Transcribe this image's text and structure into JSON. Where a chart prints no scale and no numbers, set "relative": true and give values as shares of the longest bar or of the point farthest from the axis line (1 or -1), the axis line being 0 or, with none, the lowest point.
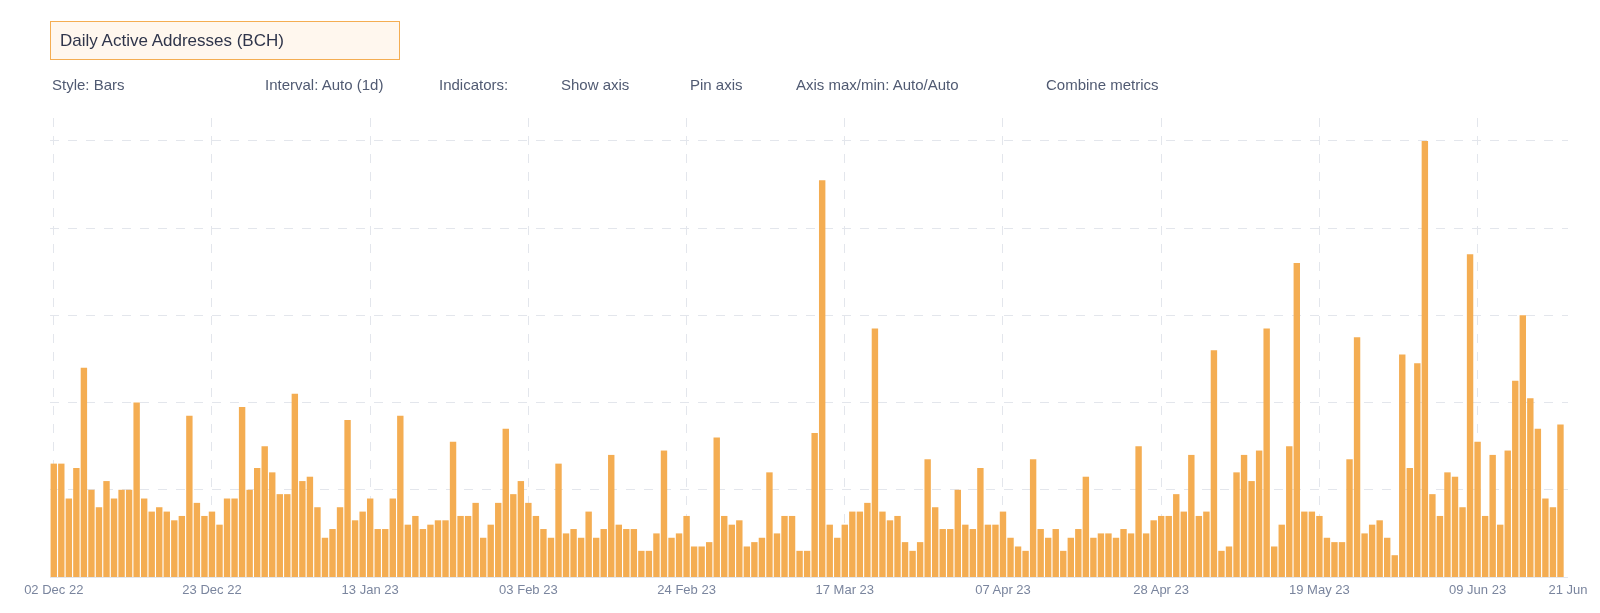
{
  "chart_data": {
    "type": "bar",
    "title": "Daily Active Addresses (BCH)",
    "relative": true,
    "color": "#f4ad52",
    "grid": true,
    "legend": false,
    "annotations": [
      "Style: Bars",
      "Interval: Auto (1d)",
      "Indicators:",
      "Show axis",
      "Pin axis",
      "Axis max/min: Auto/Auto",
      "Combine metrics"
    ],
    "xlim": [
      "2022-12-01T12:00",
      "2023-06-21T00:00"
    ],
    "xticks": [
      {
        "value": "2022-12-02",
        "label": "02 Dec 22"
      },
      {
        "value": "2022-12-23",
        "label": "23 Dec 22"
      },
      {
        "value": "2023-01-13",
        "label": "13 Jan 23"
      },
      {
        "value": "2023-02-03",
        "label": "03 Feb 23"
      },
      {
        "value": "2023-02-24",
        "label": "24 Feb 23"
      },
      {
        "value": "2023-03-17",
        "label": "17 Mar 23"
      },
      {
        "value": "2023-04-07",
        "label": "07 Apr 23"
      },
      {
        "value": "2023-04-28",
        "label": "28 Apr 23"
      },
      {
        "value": "2023-05-19",
        "label": "19 May 23"
      },
      {
        "value": "2023-06-09",
        "label": "09 Jun 23"
      },
      {
        "value": "2023-06-21",
        "label": "21 Jun"
      }
    ],
    "x": [
      "2022-12-02",
      "2022-12-03",
      "2022-12-04",
      "2022-12-05",
      "2022-12-06",
      "2022-12-07",
      "2022-12-08",
      "2022-12-09",
      "2022-12-10",
      "2022-12-11",
      "2022-12-12",
      "2022-12-13",
      "2022-12-14",
      "2022-12-15",
      "2022-12-16",
      "2022-12-17",
      "2022-12-18",
      "2022-12-19",
      "2022-12-20",
      "2022-12-21",
      "2022-12-22",
      "2022-12-23",
      "2022-12-24",
      "2022-12-25",
      "2022-12-26",
      "2022-12-27",
      "2022-12-28",
      "2022-12-29",
      "2022-12-30",
      "2022-12-31",
      "2023-01-01",
      "2023-01-02",
      "2023-01-03",
      "2023-01-04",
      "2023-01-05",
      "2023-01-06",
      "2023-01-07",
      "2023-01-08",
      "2023-01-09",
      "2023-01-10",
      "2023-01-11",
      "2023-01-12",
      "2023-01-13",
      "2023-01-14",
      "2023-01-15",
      "2023-01-16",
      "2023-01-17",
      "2023-01-18",
      "2023-01-19",
      "2023-01-20",
      "2023-01-21",
      "2023-01-22",
      "2023-01-23",
      "2023-01-24",
      "2023-01-25",
      "2023-01-26",
      "2023-01-27",
      "2023-01-28",
      "2023-01-29",
      "2023-01-30",
      "2023-01-31",
      "2023-02-01",
      "2023-02-02",
      "2023-02-03",
      "2023-02-04",
      "2023-02-05",
      "2023-02-06",
      "2023-02-07",
      "2023-02-08",
      "2023-02-09",
      "2023-02-10",
      "2023-02-11",
      "2023-02-12",
      "2023-02-13",
      "2023-02-14",
      "2023-02-15",
      "2023-02-16",
      "2023-02-17",
      "2023-02-18",
      "2023-02-19",
      "2023-02-20",
      "2023-02-21",
      "2023-02-22",
      "2023-02-23",
      "2023-02-24",
      "2023-02-25",
      "2023-02-26",
      "2023-02-27",
      "2023-02-28",
      "2023-03-01",
      "2023-03-02",
      "2023-03-03",
      "2023-03-04",
      "2023-03-05",
      "2023-03-06",
      "2023-03-07",
      "2023-03-08",
      "2023-03-09",
      "2023-03-10",
      "2023-03-11",
      "2023-03-12",
      "2023-03-13",
      "2023-03-14",
      "2023-03-15",
      "2023-03-16",
      "2023-03-17",
      "2023-03-18",
      "2023-03-19",
      "2023-03-20",
      "2023-03-21",
      "2023-03-22",
      "2023-03-23",
      "2023-03-24",
      "2023-03-25",
      "2023-03-26",
      "2023-03-27",
      "2023-03-28",
      "2023-03-29",
      "2023-03-30",
      "2023-03-31",
      "2023-04-01",
      "2023-04-02",
      "2023-04-03",
      "2023-04-04",
      "2023-04-05",
      "2023-04-06",
      "2023-04-07",
      "2023-04-08",
      "2023-04-09",
      "2023-04-10",
      "2023-04-11",
      "2023-04-12",
      "2023-04-13",
      "2023-04-14",
      "2023-04-15",
      "2023-04-16",
      "2023-04-17",
      "2023-04-18",
      "2023-04-19",
      "2023-04-20",
      "2023-04-21",
      "2023-04-22",
      "2023-04-23",
      "2023-04-24",
      "2023-04-25",
      "2023-04-26",
      "2023-04-27",
      "2023-04-28",
      "2023-04-29",
      "2023-04-30",
      "2023-05-01",
      "2023-05-02",
      "2023-05-03",
      "2023-05-04",
      "2023-05-05",
      "2023-05-06",
      "2023-05-07",
      "2023-05-08",
      "2023-05-09",
      "2023-05-10",
      "2023-05-11",
      "2023-05-12",
      "2023-05-13",
      "2023-05-14",
      "2023-05-15",
      "2023-05-16",
      "2023-05-17",
      "2023-05-18",
      "2023-05-19",
      "2023-05-20",
      "2023-05-21",
      "2023-05-22",
      "2023-05-23",
      "2023-05-24",
      "2023-05-25",
      "2023-05-26",
      "2023-05-27",
      "2023-05-28",
      "2023-05-29",
      "2023-05-30",
      "2023-05-31",
      "2023-06-01",
      "2023-06-02",
      "2023-06-03",
      "2023-06-04",
      "2023-06-05",
      "2023-06-06",
      "2023-06-07",
      "2023-06-08",
      "2023-06-09",
      "2023-06-10",
      "2023-06-11",
      "2023-06-12",
      "2023-06-13",
      "2023-06-14",
      "2023-06-15",
      "2023-06-16",
      "2023-06-17",
      "2023-06-18",
      "2023-06-19",
      "2023-06-20"
    ],
    "values": [
      0.26,
      0.26,
      0.18,
      0.25,
      0.48,
      0.2,
      0.16,
      0.22,
      0.18,
      0.2,
      0.2,
      0.4,
      0.18,
      0.15,
      0.16,
      0.15,
      0.13,
      0.14,
      0.37,
      0.17,
      0.14,
      0.15,
      0.12,
      0.18,
      0.18,
      0.39,
      0.2,
      0.25,
      0.3,
      0.24,
      0.19,
      0.19,
      0.42,
      0.22,
      0.23,
      0.16,
      0.09,
      0.11,
      0.16,
      0.36,
      0.13,
      0.15,
      0.18,
      0.11,
      0.11,
      0.18,
      0.37,
      0.12,
      0.14,
      0.11,
      0.12,
      0.13,
      0.13,
      0.31,
      0.14,
      0.14,
      0.17,
      0.09,
      0.12,
      0.17,
      0.34,
      0.19,
      0.22,
      0.17,
      0.14,
      0.11,
      0.09,
      0.26,
      0.1,
      0.11,
      0.09,
      0.15,
      0.09,
      0.11,
      0.28,
      0.12,
      0.11,
      0.11,
      0.06,
      0.06,
      0.1,
      0.29,
      0.09,
      0.1,
      0.14,
      0.07,
      0.07,
      0.08,
      0.32,
      0.14,
      0.12,
      0.13,
      0.07,
      0.08,
      0.09,
      0.24,
      0.1,
      0.14,
      0.14,
      0.06,
      0.06,
      0.33,
      0.91,
      0.12,
      0.09,
      0.12,
      0.15,
      0.15,
      0.17,
      0.57,
      0.15,
      0.13,
      0.14,
      0.08,
      0.06,
      0.08,
      0.27,
      0.16,
      0.11,
      0.11,
      0.2,
      0.12,
      0.11,
      0.25,
      0.12,
      0.12,
      0.15,
      0.09,
      0.07,
      0.06,
      0.27,
      0.11,
      0.09,
      0.11,
      0.06,
      0.09,
      0.11,
      0.23,
      0.09,
      0.1,
      0.1,
      0.09,
      0.11,
      0.1,
      0.3,
      0.1,
      0.13,
      0.14,
      0.14,
      0.19,
      0.15,
      0.28,
      0.14,
      0.15,
      0.52,
      0.06,
      0.07,
      0.24,
      0.28,
      0.22,
      0.29,
      0.57,
      0.07,
      0.12,
      0.3,
      0.72,
      0.15,
      0.15,
      0.14,
      0.09,
      0.08,
      0.08,
      0.27,
      0.55,
      0.1,
      0.12,
      0.13,
      0.09,
      0.05,
      0.51,
      0.25,
      0.49,
      1,
      0.19,
      0.14,
      0.24,
      0.23,
      0.16,
      0.74,
      0.31,
      0.14,
      0.28,
      0.12,
      0.29,
      0.45,
      0.6,
      0.41,
      0.34,
      0.18,
      0.16,
      0.35
    ]
  }
}
